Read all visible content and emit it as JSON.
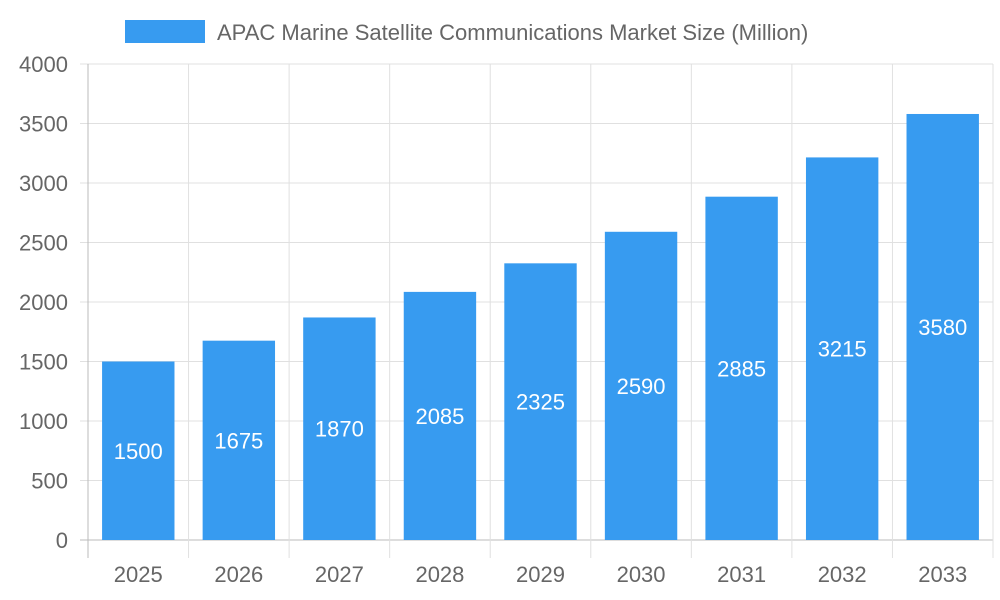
{
  "chart_data": {
    "type": "bar",
    "categories": [
      "2025",
      "2026",
      "2027",
      "2028",
      "2029",
      "2030",
      "2031",
      "2032",
      "2033"
    ],
    "series": [
      {
        "name": "APAC Marine Satellite Communications Market Size (Million)",
        "values": [
          1500,
          1675,
          1870,
          2085,
          2325,
          2590,
          2885,
          3215,
          3580
        ],
        "color": "#379BF0"
      }
    ],
    "yticks": [
      0,
      500,
      1000,
      1500,
      2000,
      2500,
      3000,
      3500,
      4000
    ],
    "ylim": [
      0,
      4000
    ],
    "grid": true,
    "legend": "top",
    "data_labels": true
  }
}
